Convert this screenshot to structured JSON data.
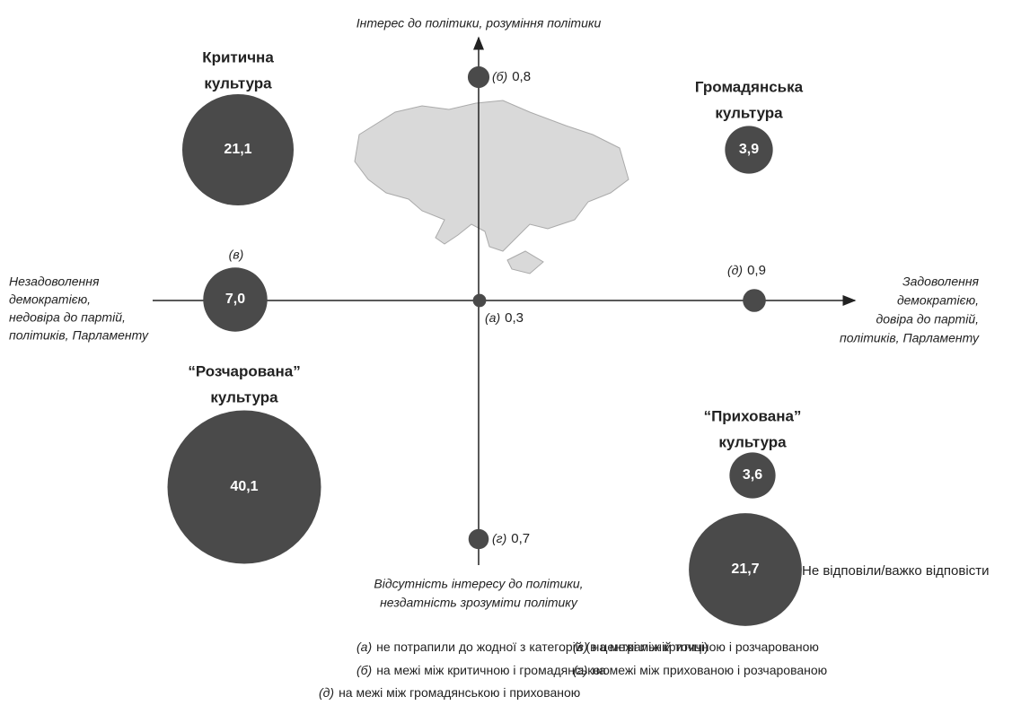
{
  "axes": {
    "top": "Інтерес до політики, розуміння політики",
    "bottom": [
      "Відсутність інтересу до політики,",
      "нездатність зрозуміти політику"
    ],
    "left": [
      "Незадоволення",
      "демократією,",
      "недовіра до партій,",
      "політиків, Парламенту"
    ],
    "right": [
      "Задоволення",
      "демократією,",
      "довіра до партій,",
      "політиків, Парламенту"
    ]
  },
  "bubbles": [
    {
      "title": [
        "Критична",
        "культура"
      ],
      "value": 21.1,
      "value_label": "21,1"
    },
    {
      "title": [
        "Громадянська",
        "культура"
      ],
      "value": 3.9,
      "value_label": "3,9"
    },
    {
      "title": [
        "“Розчарована”",
        "культура"
      ],
      "value": 40.1,
      "value_label": "40,1"
    },
    {
      "title": [
        "“Прихована”",
        "культура"
      ],
      "value": 3.6,
      "value_label": "3,6"
    },
    {
      "title": [
        "Не відповіли/важко відповісти"
      ],
      "value": 21.7,
      "value_label": "21,7"
    }
  ],
  "points": [
    {
      "tag": "(а)",
      "value": 0.3,
      "value_label": "0,3"
    },
    {
      "tag": "(б)",
      "value": 0.8,
      "value_label": "0,8"
    },
    {
      "tag": "(в)",
      "value": 7.0,
      "value_label": "7,0"
    },
    {
      "tag": "(г)",
      "value": 0.7,
      "value_label": "0,7"
    },
    {
      "tag": "(д)",
      "value": 0.9,
      "value_label": "0,9"
    }
  ],
  "legend": [
    {
      "tag": "(а)",
      "text": "не потрапили до жодної з категорій (в центральній точці)"
    },
    {
      "tag": "(б)",
      "text": "на межі між критичною і громадянською"
    },
    {
      "tag": "(в)",
      "text": "на межі між критичною і розчарованою"
    },
    {
      "tag": "(г)",
      "text": "на межі між прихованою і розчарованою"
    },
    {
      "tag": "(д)",
      "text": "на межі між громадянською і прихованою"
    }
  ]
}
